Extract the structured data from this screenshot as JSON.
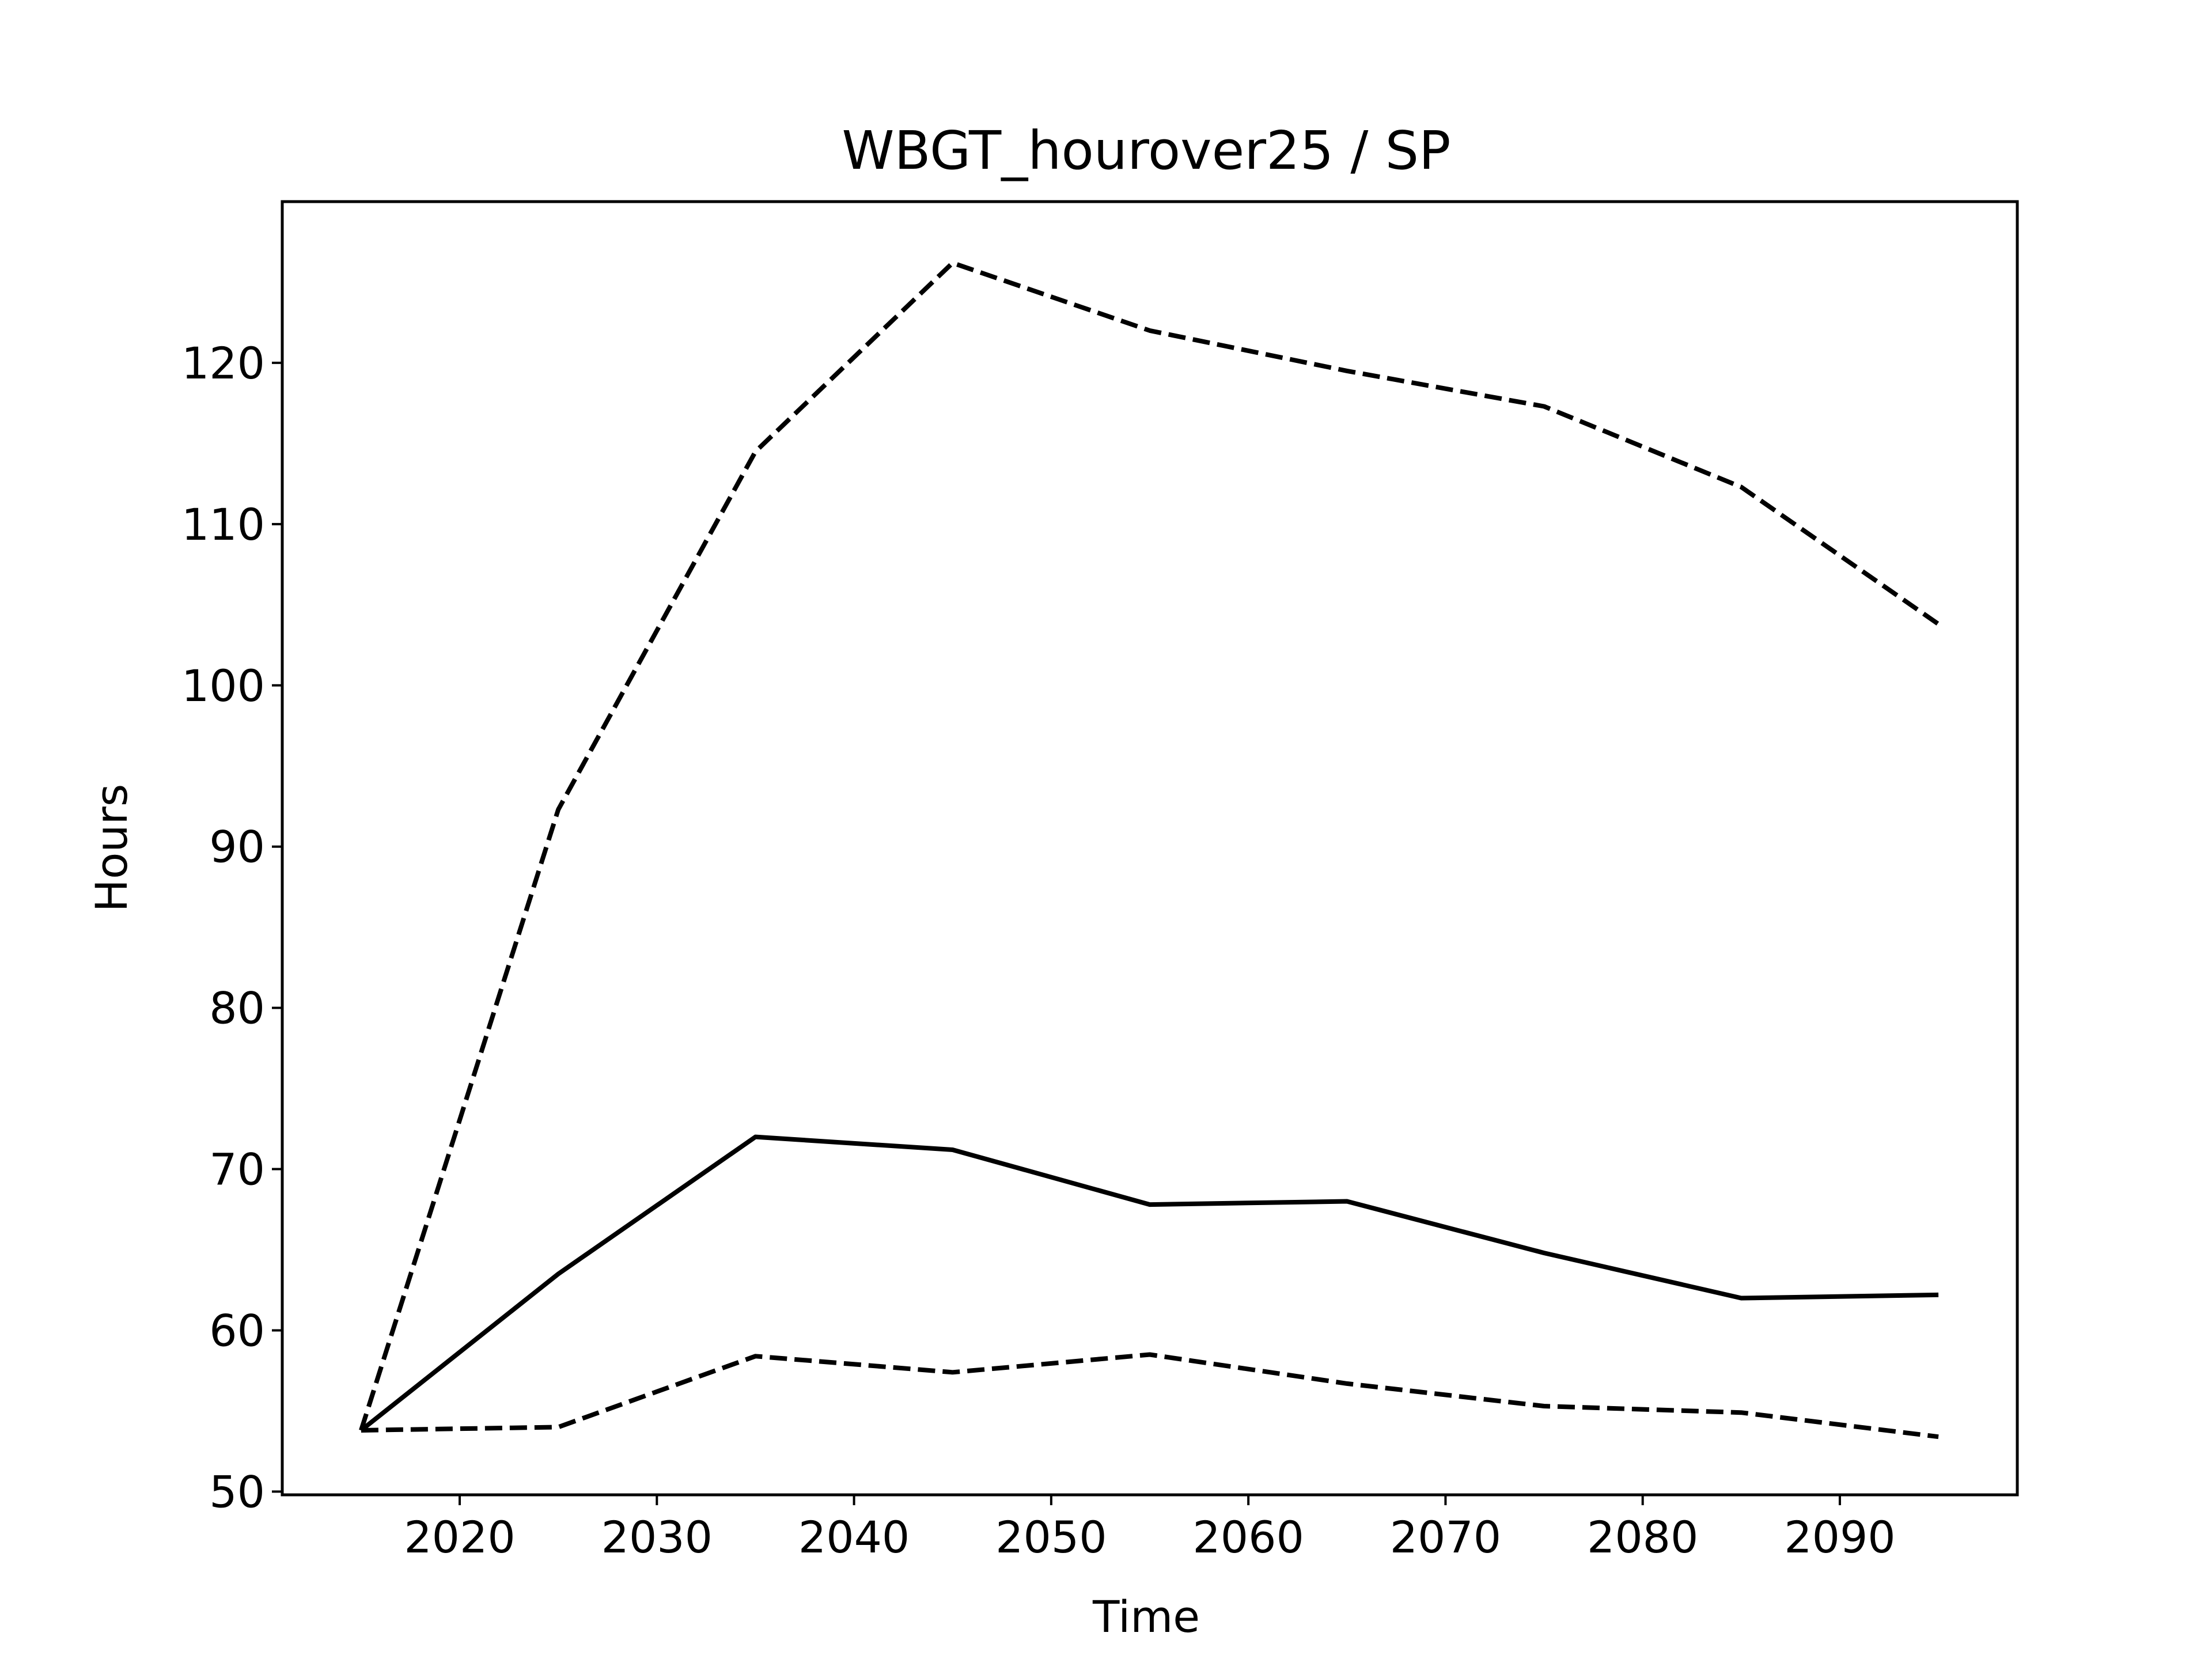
{
  "chart_data": {
    "type": "line",
    "title": "WBGT_hourover25 / SP",
    "xlabel": "Time",
    "ylabel": "Hours",
    "xlim": [
      2011,
      2099
    ],
    "ylim": [
      49.8,
      130
    ],
    "xticks": [
      2020,
      2030,
      2040,
      2050,
      2060,
      2070,
      2080,
      2090
    ],
    "yticks": [
      50,
      60,
      70,
      80,
      90,
      100,
      110,
      120
    ],
    "grid": false,
    "line_color": "#000000",
    "x": [
      2015,
      2025,
      2035,
      2045,
      2055,
      2065,
      2075,
      2085,
      2095
    ],
    "series": [
      {
        "style": "dashed",
        "values": [
          53.8,
          92.3,
          114.5,
          126.2,
          122.0,
          119.5,
          117.3,
          112.3,
          103.8
        ]
      },
      {
        "style": "solid",
        "values": [
          53.8,
          63.5,
          72.0,
          71.2,
          67.8,
          68.0,
          64.8,
          62.0,
          62.2
        ]
      },
      {
        "style": "dashed",
        "values": [
          53.8,
          54.0,
          58.4,
          57.4,
          58.5,
          56.7,
          55.3,
          54.9,
          53.4
        ]
      }
    ]
  }
}
